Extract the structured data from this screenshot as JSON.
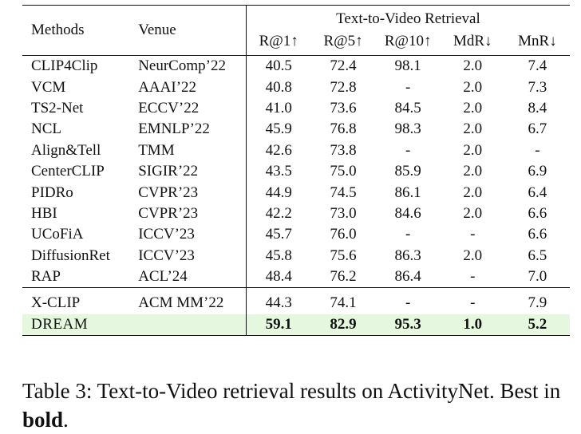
{
  "table": {
    "header": {
      "methods": "Methods",
      "venue": "Venue",
      "group": "Text-to-Video Retrieval",
      "metrics": [
        "R@1↑",
        "R@5↑",
        "R@10↑",
        "MdR↓",
        "MnR↓"
      ]
    },
    "rows_group1": [
      {
        "method": "CLIP4Clip",
        "venue": "NeurComp’22",
        "values": [
          "40.5",
          "72.4",
          "98.1",
          "2.0",
          "7.4"
        ]
      },
      {
        "method": "VCM",
        "venue": "AAAI’22",
        "values": [
          "40.8",
          "72.8",
          "-",
          "2.0",
          "7.3"
        ]
      },
      {
        "method": "TS2-Net",
        "venue": "ECCV’22",
        "values": [
          "41.0",
          "73.6",
          "84.5",
          "2.0",
          "8.4"
        ]
      },
      {
        "method": "NCL",
        "venue": "EMNLP’22",
        "values": [
          "45.9",
          "76.8",
          "98.3",
          "2.0",
          "6.7"
        ]
      },
      {
        "method": "Align&Tell",
        "venue": "TMM",
        "values": [
          "42.6",
          "73.8",
          "-",
          "2.0",
          "-"
        ]
      },
      {
        "method": "CenterCLIP",
        "venue": "SIGIR’22",
        "values": [
          "43.5",
          "75.0",
          "85.9",
          "2.0",
          "6.9"
        ]
      },
      {
        "method": "PIDRo",
        "venue": "CVPR’23",
        "values": [
          "44.9",
          "74.5",
          "86.1",
          "2.0",
          "6.4"
        ]
      },
      {
        "method": "HBI",
        "venue": "CVPR’23",
        "values": [
          "42.2",
          "73.0",
          "84.6",
          "2.0",
          "6.6"
        ]
      },
      {
        "method": "UCoFiA",
        "venue": "ICCV’23",
        "values": [
          "45.7",
          "76.0",
          "-",
          "-",
          "6.6"
        ]
      },
      {
        "method": "DiffusionRet",
        "venue": "ICCV’23",
        "values": [
          "45.8",
          "75.6",
          "86.3",
          "2.0",
          "6.5"
        ]
      },
      {
        "method": "RAP",
        "venue": "ACL’24",
        "values": [
          "48.4",
          "76.2",
          "86.4",
          "-",
          "7.0"
        ]
      }
    ],
    "rows_group2": [
      {
        "method": "X-CLIP",
        "venue": "ACM MM’22",
        "values": [
          "44.3",
          "74.1",
          "-",
          "-",
          "7.9"
        ]
      }
    ],
    "ours": {
      "method": "DREAM",
      "venue": "",
      "values": [
        "59.1",
        "82.9",
        "95.3",
        "1.0",
        "5.2"
      ],
      "highlight": "#e6f7df"
    }
  },
  "caption": {
    "text": "Table 3: Text-to-Video retrieval results on ActivityNet. Best in",
    "bold": "bold",
    "end": "."
  }
}
